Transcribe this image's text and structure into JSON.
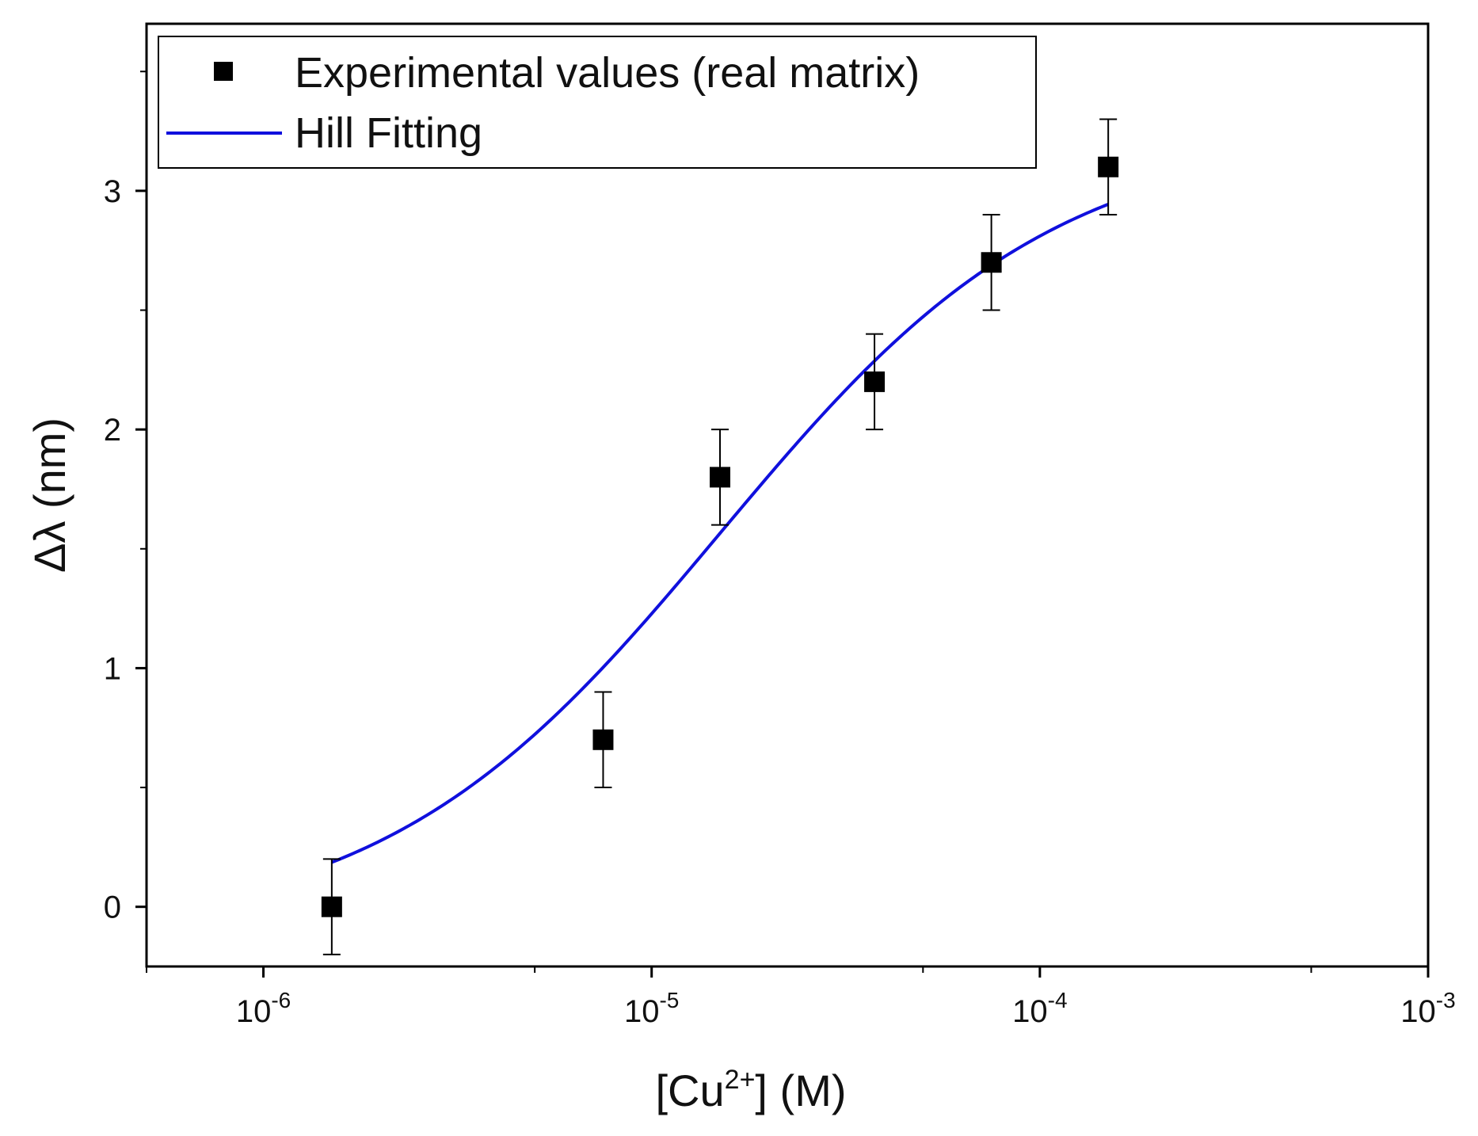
{
  "chart_data": {
    "type": "scatter",
    "xscale": "log",
    "xlim": [
      5e-07,
      0.001
    ],
    "ylim": [
      -0.25,
      3.7
    ],
    "xlabel": {
      "prefix": "[Cu",
      "sup": "2+",
      "suffix": "] (M)"
    },
    "ylabel": "Δλ (nm)",
    "legend": {
      "position": "top-left",
      "entries": [
        {
          "name": "Experimental values (real matrix)",
          "marker": "square",
          "color": "#000000"
        },
        {
          "name": "Hill Fitting",
          "marker": "line",
          "color": "#1010dd"
        }
      ]
    },
    "series": [
      {
        "name": "Experimental values (real matrix)",
        "x": [
          1.5e-06,
          7.5e-06,
          1.5e-05,
          3.75e-05,
          7.5e-05,
          0.00015
        ],
        "y": [
          0.0,
          0.7,
          1.8,
          2.2,
          2.7,
          3.1
        ],
        "err": [
          0.2,
          0.2,
          0.2,
          0.2,
          0.2,
          0.2
        ],
        "color": "#000000"
      },
      {
        "name": "Hill Fitting",
        "type": "line",
        "color": "#1010dd",
        "fit": {
          "model": "hill",
          "start": -0.12,
          "end": 3.25,
          "k": 1.5e-05,
          "n": 1.0
        },
        "x_range": [
          1.5e-06,
          0.00015
        ]
      }
    ],
    "xticks": [
      {
        "base": "10",
        "exp": "-6",
        "value": 1e-06
      },
      {
        "base": "10",
        "exp": "-5",
        "value": 1e-05
      },
      {
        "base": "10",
        "exp": "-4",
        "value": 0.0001
      },
      {
        "base": "10",
        "exp": "-3",
        "value": 0.001
      }
    ],
    "yticks": [
      {
        "label": "0",
        "value": 0
      },
      {
        "label": "1",
        "value": 1
      },
      {
        "label": "2",
        "value": 2
      },
      {
        "label": "3",
        "value": 3
      }
    ]
  }
}
